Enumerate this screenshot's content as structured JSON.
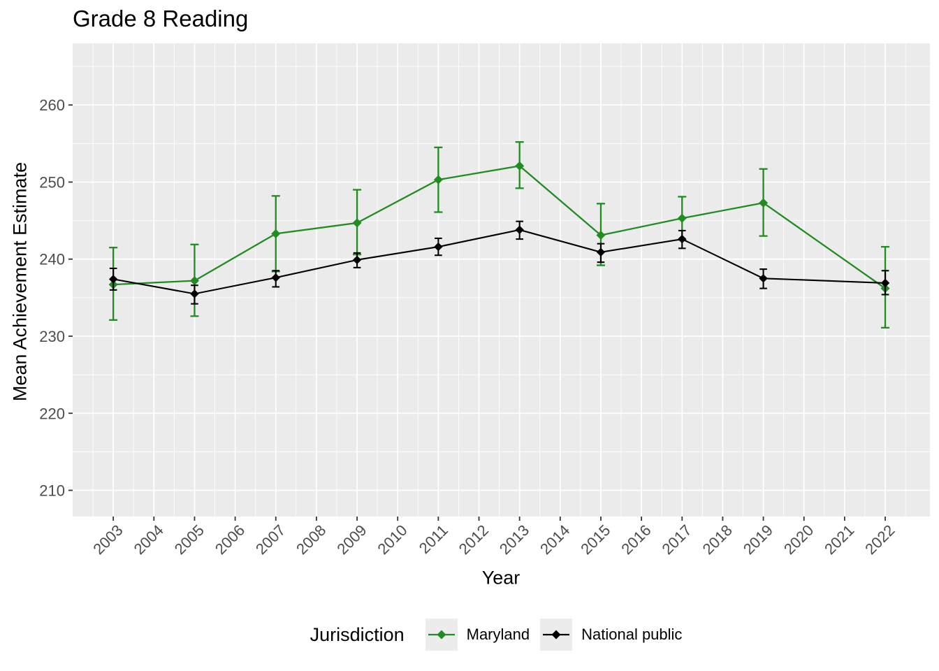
{
  "title": "Grade 8 Reading",
  "axes": {
    "x_title": "Year",
    "y_title": "Mean Achievement Estimate",
    "y_tick_labels": [
      "210",
      "220",
      "230",
      "240",
      "250",
      "260"
    ],
    "x_tick_labels": [
      "2003",
      "2004",
      "2005",
      "2006",
      "2007",
      "2008",
      "2009",
      "2010",
      "2011",
      "2012",
      "2013",
      "2014",
      "2015",
      "2016",
      "2017",
      "2018",
      "2019",
      "2020",
      "2021",
      "2022"
    ]
  },
  "legend": {
    "title": "Jurisdiction",
    "entries": [
      {
        "label": "Maryland",
        "color": "#228B22"
      },
      {
        "label": "National public",
        "color": "#000000"
      }
    ]
  },
  "colors": {
    "panel_background": "#EBEBEB",
    "gridline": "#FFFFFF",
    "tick_mark": "#333333",
    "tick_label": "#4D4D4D",
    "text": "#000000",
    "legend_key_background": "#ECECEC"
  },
  "chart_data": {
    "type": "line",
    "title": "Grade 8 Reading",
    "xlabel": "Year",
    "ylabel": "Mean Achievement Estimate",
    "legend_title": "Jurisdiction",
    "legend_position": "bottom",
    "grid": true,
    "error_bars": true,
    "marker": "diamond",
    "x": [
      2003,
      2005,
      2007,
      2009,
      2011,
      2013,
      2015,
      2017,
      2019,
      2022
    ],
    "series": [
      {
        "name": "Maryland",
        "color": "#228B22",
        "values": [
          236.7,
          237.2,
          243.3,
          244.7,
          250.3,
          252.1,
          243.1,
          245.3,
          247.3,
          236.2
        ],
        "ci_low": [
          232.1,
          232.6,
          238.4,
          240.6,
          246.1,
          249.2,
          239.2,
          242.5,
          243.0,
          231.1
        ],
        "ci_high": [
          241.5,
          241.9,
          248.2,
          249.0,
          254.5,
          255.2,
          247.2,
          248.1,
          251.7,
          241.6
        ]
      },
      {
        "name": "National public",
        "color": "#000000",
        "values": [
          237.4,
          235.5,
          237.6,
          239.9,
          241.6,
          243.8,
          240.9,
          242.6,
          237.5,
          236.9
        ],
        "ci_low": [
          236.0,
          234.2,
          236.4,
          238.9,
          240.5,
          242.6,
          239.6,
          241.4,
          236.2,
          235.4
        ],
        "ci_high": [
          238.8,
          236.6,
          238.5,
          240.8,
          242.7,
          244.9,
          242.0,
          243.7,
          238.7,
          238.5
        ]
      }
    ],
    "x_breaks": [
      2003,
      2004,
      2005,
      2006,
      2007,
      2008,
      2009,
      2010,
      2011,
      2012,
      2013,
      2014,
      2015,
      2016,
      2017,
      2018,
      2019,
      2020,
      2021,
      2022
    ],
    "y_breaks": [
      210,
      220,
      230,
      240,
      250,
      260
    ],
    "xlim": [
      2002.0,
      2023.1
    ],
    "ylim": [
      206.6,
      268.0
    ]
  }
}
